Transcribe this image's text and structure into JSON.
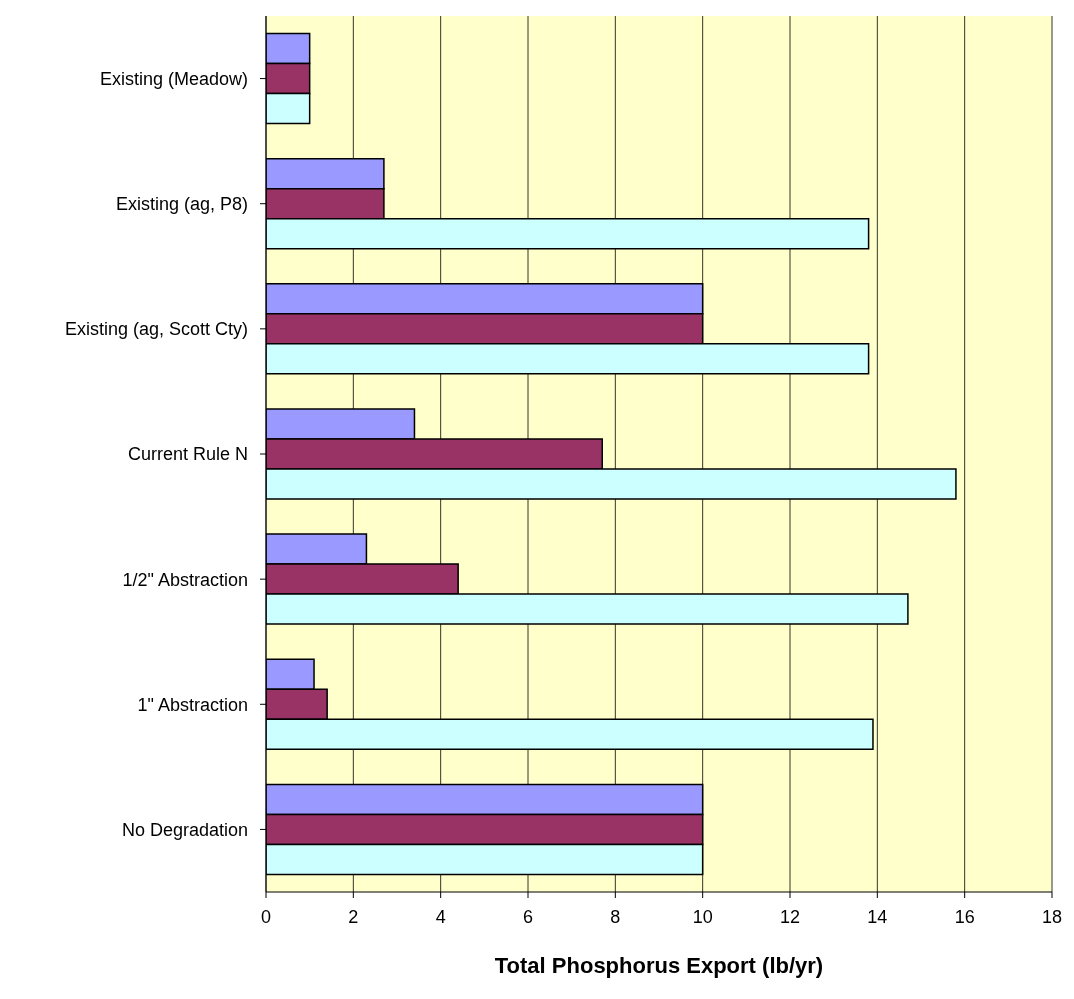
{
  "chart_data": {
    "type": "bar",
    "orientation": "horizontal",
    "xlabel": "Total Phosphorus Export (lb/yr)",
    "categories": [
      "Existing (Meadow)",
      "Existing (ag, P8)",
      "Existing (ag, Scott Cty)",
      "Current Rule N",
      "1/2\" Abstraction",
      "1\" Abstraction",
      "No Degradation"
    ],
    "series": [
      {
        "color": "#9999ff",
        "values": [
          1,
          2.7,
          10,
          3.4,
          2.3,
          1.1,
          10
        ]
      },
      {
        "color": "#993366",
        "values": [
          1,
          2.7,
          10,
          7.7,
          4.4,
          1.4,
          10
        ]
      },
      {
        "color": "#ccffff",
        "values": [
          1,
          13.8,
          13.8,
          15.8,
          14.7,
          13.9,
          10
        ]
      }
    ],
    "xlim": [
      0,
      18
    ],
    "xticks": [
      0,
      2,
      4,
      6,
      8,
      10,
      12,
      14,
      16,
      18
    ],
    "grid": "x"
  }
}
